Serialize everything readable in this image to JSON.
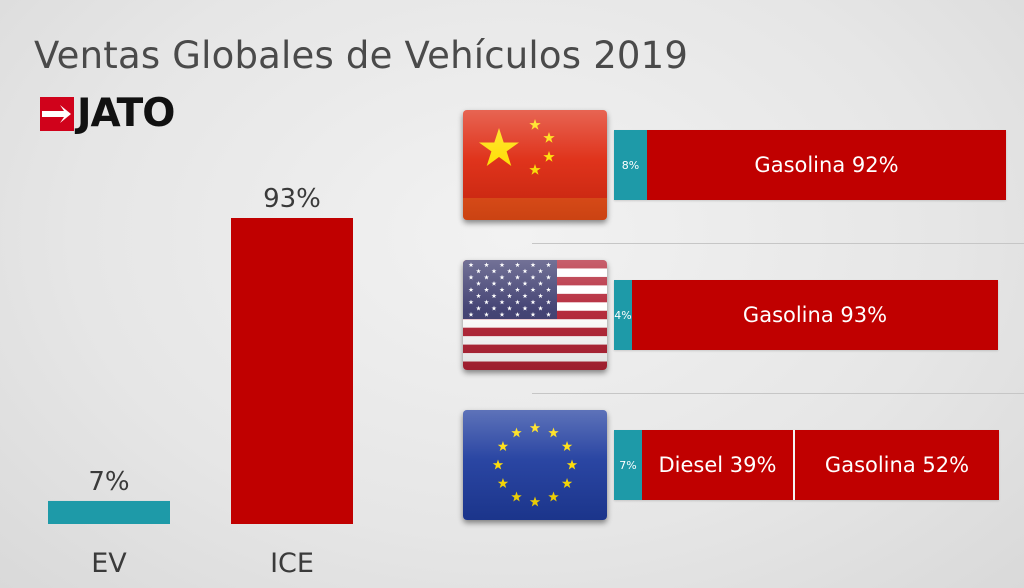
{
  "title": "Ventas Globales de Vehículos 2019",
  "brand": {
    "name": "JATO",
    "mark_color": "#d0021b"
  },
  "colors": {
    "ev": "#1e9aa8",
    "ice": "#c00000",
    "diesel": "#c00000",
    "gasoline": "#c00000"
  },
  "chart_data": [
    {
      "type": "bar",
      "title": "Ventas Globales de Vehículos 2019",
      "categories": [
        "EV",
        "ICE"
      ],
      "values": [
        7,
        93
      ],
      "value_labels": [
        "7%",
        "93%"
      ],
      "unit": "%",
      "ylim": [
        0,
        100
      ],
      "grid": false,
      "legend": "none"
    },
    {
      "type": "bar",
      "orientation": "horizontal",
      "stacked": true,
      "regions": [
        {
          "flag": "china-flag",
          "segments": [
            {
              "key": "ev",
              "value": 8,
              "label": "8%"
            },
            {
              "key": "gasoline",
              "value": 92,
              "label": "Gasolina 92%"
            }
          ]
        },
        {
          "flag": "usa-flag",
          "segments": [
            {
              "key": "ev",
              "value": 4,
              "label": "4%"
            },
            {
              "key": "gasoline",
              "value": 93,
              "label": "Gasolina 93%"
            }
          ]
        },
        {
          "flag": "eu-flag",
          "segments": [
            {
              "key": "ev",
              "value": 7,
              "label": "7%"
            },
            {
              "key": "diesel",
              "value": 39,
              "label": "Diesel 39%"
            },
            {
              "key": "gasoline",
              "value": 52,
              "label": "Gasolina 52%"
            }
          ]
        }
      ]
    }
  ]
}
